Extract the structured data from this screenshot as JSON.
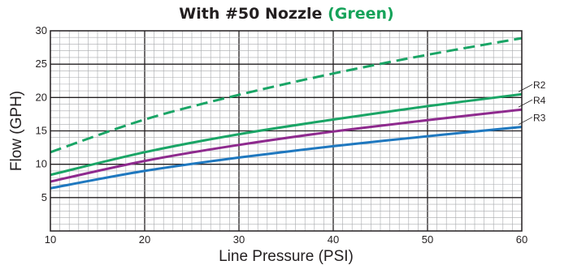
{
  "chart_data": {
    "type": "line",
    "title": "With #50 Nozzle",
    "title_accent": "(Green)",
    "xlabel": "Line Pressure (PSI)",
    "ylabel": "Flow (GPH)",
    "xlim": [
      10,
      60
    ],
    "ylim": [
      0,
      30
    ],
    "x_ticks": [
      10,
      20,
      30,
      40,
      50,
      60
    ],
    "y_ticks": [
      5,
      10,
      15,
      20,
      25,
      30
    ],
    "grid": true,
    "colors": {
      "title_accent": "#16a35a",
      "green": "#1aa566",
      "purple": "#8e2a8e",
      "blue": "#1f78bf",
      "grid": "#a7a9ac",
      "frame": "#231f20"
    },
    "series": [
      {
        "name": "",
        "style": "dashed",
        "color": "#1aa566",
        "x": [
          10,
          20,
          30,
          40,
          50,
          60
        ],
        "y": [
          11.8,
          16.7,
          20.4,
          23.6,
          26.4,
          28.9
        ]
      },
      {
        "name": "R2",
        "style": "solid",
        "color": "#1aa566",
        "x": [
          10,
          20,
          30,
          40,
          50,
          60
        ],
        "y": [
          8.4,
          11.8,
          14.5,
          16.7,
          18.7,
          20.5
        ]
      },
      {
        "name": "R4",
        "style": "solid",
        "color": "#8e2a8e",
        "x": [
          10,
          20,
          30,
          40,
          50,
          60
        ],
        "y": [
          7.4,
          10.5,
          12.9,
          14.9,
          16.6,
          18.2
        ]
      },
      {
        "name": "R3",
        "style": "solid",
        "color": "#1f78bf",
        "x": [
          10,
          20,
          30,
          40,
          50,
          60
        ],
        "y": [
          6.4,
          9.0,
          11.0,
          12.7,
          14.2,
          15.6
        ]
      }
    ]
  }
}
